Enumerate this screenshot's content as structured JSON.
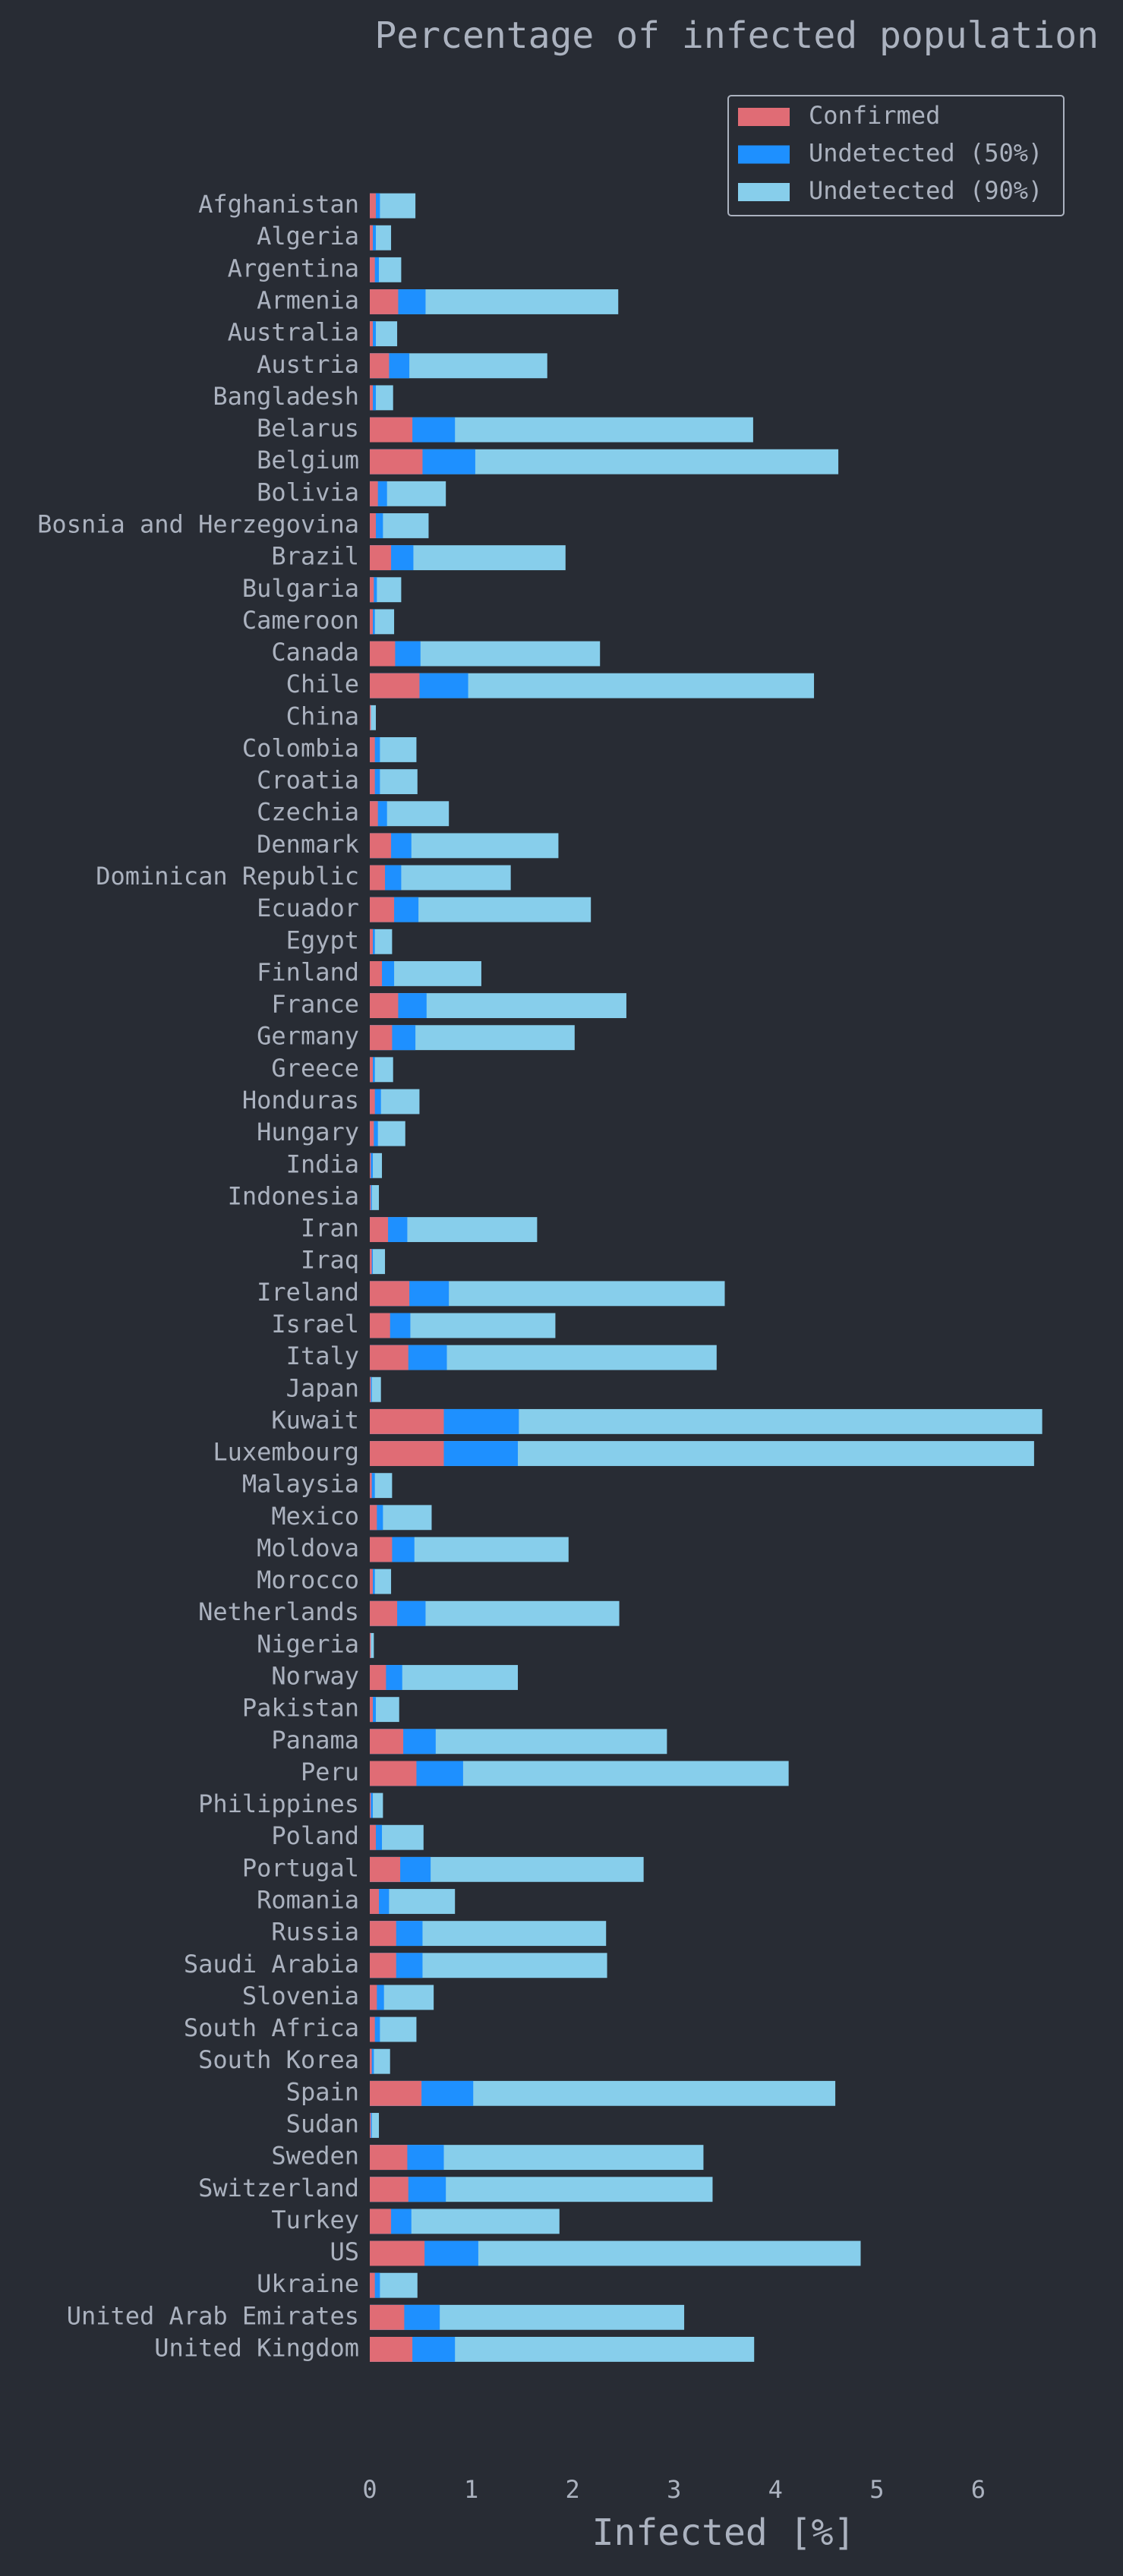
{
  "chart_data": {
    "type": "barh",
    "title": "Percentage of infected population",
    "xlabel": "Infected [%]",
    "categories": [
      "Afghanistan",
      "Algeria",
      "Argentina",
      "Armenia",
      "Australia",
      "Austria",
      "Bangladesh",
      "Belarus",
      "Belgium",
      "Bolivia",
      "Bosnia and Herzegovina",
      "Brazil",
      "Bulgaria",
      "Cameroon",
      "Canada",
      "Chile",
      "China",
      "Colombia",
      "Croatia",
      "Czechia",
      "Denmark",
      "Dominican Republic",
      "Ecuador",
      "Egypt",
      "Finland",
      "France",
      "Germany",
      "Greece",
      "Honduras",
      "Hungary",
      "India",
      "Indonesia",
      "Iran",
      "Iraq",
      "Ireland",
      "Israel",
      "Italy",
      "Japan",
      "Kuwait",
      "Luxembourg",
      "Malaysia",
      "Mexico",
      "Moldova",
      "Morocco",
      "Netherlands",
      "Nigeria",
      "Norway",
      "Pakistan",
      "Panama",
      "Peru",
      "Philippines",
      "Poland",
      "Portugal",
      "Romania",
      "Russia",
      "Saudi Arabia",
      "Slovenia",
      "South Africa",
      "South Korea",
      "Spain",
      "Sudan",
      "Sweden",
      "Switzerland",
      "Turkey",
      "US",
      "Ukraine",
      "United Arab Emirates",
      "United Kingdom"
    ],
    "series": [
      {
        "name": "Confirmed",
        "color": "#e06c75",
        "values": [
          0.06,
          0.03,
          0.05,
          0.28,
          0.03,
          0.19,
          0.03,
          0.42,
          0.52,
          0.08,
          0.06,
          0.21,
          0.04,
          0.03,
          0.25,
          0.49,
          0.01,
          0.05,
          0.05,
          0.08,
          0.21,
          0.15,
          0.24,
          0.03,
          0.12,
          0.28,
          0.22,
          0.03,
          0.05,
          0.04,
          0.01,
          0.01,
          0.18,
          0.02,
          0.39,
          0.2,
          0.38,
          0.01,
          0.73,
          0.73,
          0.02,
          0.07,
          0.22,
          0.03,
          0.27,
          0.01,
          0.16,
          0.03,
          0.33,
          0.46,
          0.01,
          0.06,
          0.3,
          0.09,
          0.26,
          0.26,
          0.07,
          0.05,
          0.02,
          0.51,
          0.01,
          0.37,
          0.38,
          0.21,
          0.54,
          0.05,
          0.34,
          0.42
        ]
      },
      {
        "name": "Undetected (50%)",
        "color": "#1e90ff",
        "values": [
          0.1,
          0.06,
          0.09,
          0.55,
          0.06,
          0.39,
          0.06,
          0.84,
          1.04,
          0.17,
          0.13,
          0.43,
          0.07,
          0.05,
          0.5,
          0.97,
          0.01,
          0.1,
          0.1,
          0.17,
          0.41,
          0.31,
          0.48,
          0.05,
          0.24,
          0.56,
          0.45,
          0.05,
          0.11,
          0.08,
          0.03,
          0.02,
          0.37,
          0.03,
          0.78,
          0.4,
          0.76,
          0.02,
          1.47,
          1.46,
          0.05,
          0.13,
          0.44,
          0.05,
          0.55,
          0.01,
          0.32,
          0.06,
          0.65,
          0.92,
          0.03,
          0.12,
          0.6,
          0.19,
          0.52,
          0.52,
          0.14,
          0.1,
          0.04,
          1.02,
          0.02,
          0.73,
          0.75,
          0.41,
          1.07,
          0.1,
          0.69,
          0.84
        ]
      },
      {
        "name": "Undetected (90%)",
        "color": "#87ceeb",
        "values": [
          0.45,
          0.21,
          0.31,
          2.45,
          0.27,
          1.75,
          0.23,
          3.78,
          4.62,
          0.75,
          0.58,
          1.93,
          0.31,
          0.24,
          2.27,
          4.38,
          0.06,
          0.46,
          0.47,
          0.78,
          1.86,
          1.39,
          2.18,
          0.22,
          1.1,
          2.53,
          2.02,
          0.23,
          0.49,
          0.35,
          0.12,
          0.09,
          1.65,
          0.15,
          3.5,
          1.83,
          3.42,
          0.11,
          6.63,
          6.55,
          0.22,
          0.61,
          1.96,
          0.21,
          2.46,
          0.04,
          1.46,
          0.29,
          2.93,
          4.13,
          0.13,
          0.53,
          2.7,
          0.84,
          2.33,
          2.34,
          0.63,
          0.46,
          0.2,
          4.59,
          0.09,
          3.29,
          3.38,
          1.87,
          4.84,
          0.47,
          3.1,
          3.79
        ]
      }
    ],
    "xlim": [
      0,
      7
    ],
    "xticks": [
      0,
      1,
      2,
      3,
      4,
      5,
      6
    ],
    "legend": "upper right"
  }
}
